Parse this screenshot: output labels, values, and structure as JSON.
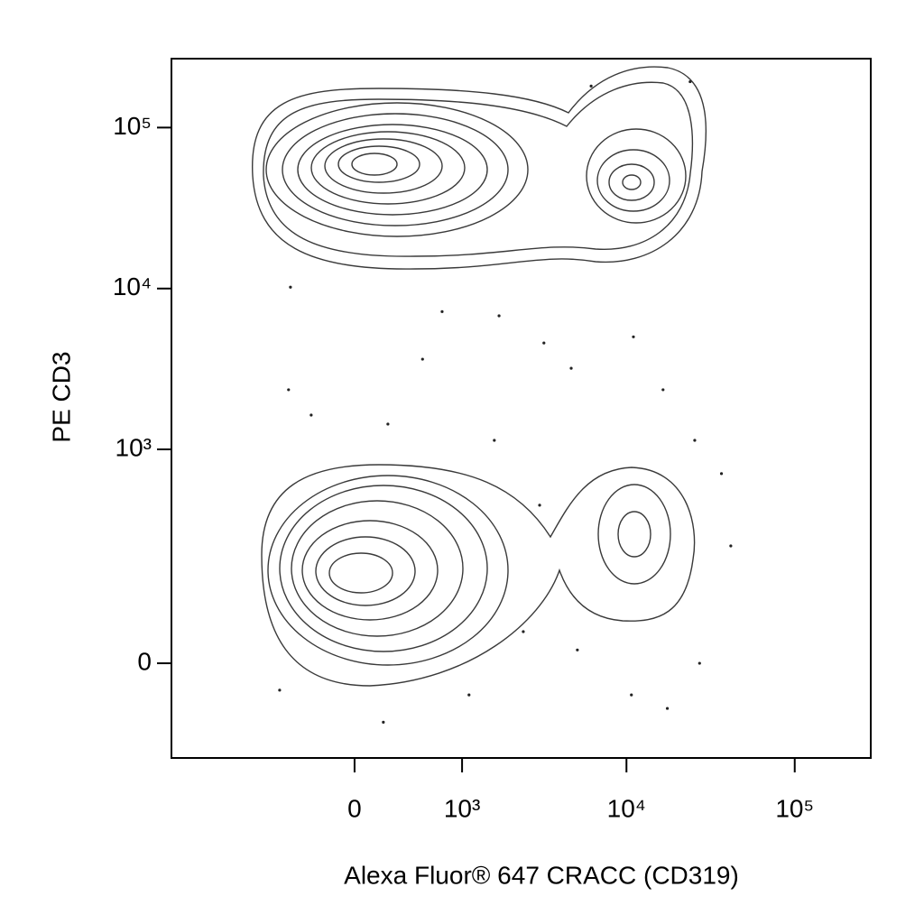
{
  "chart_data": {
    "type": "scatter",
    "x_label": "Alexa Fluor® 647 CRACC (CD319)",
    "y_label": "PE  CD3",
    "xscale": {
      "type": "asinh",
      "cofactor": 485
    },
    "yscale": {
      "type": "asinh",
      "cofactor": 94
    },
    "xlim": [
      -2950,
      283000
    ],
    "ylim": [
      -170,
      268000
    ],
    "xticks": [
      0,
      {
        "value": 1000,
        "label": "10³"
      },
      {
        "value": 10000,
        "label": "10⁴"
      },
      {
        "value": 100000,
        "label": "10⁵"
      }
    ],
    "yticks": [
      0,
      {
        "value": 1000,
        "label": "10³"
      },
      {
        "value": 10000,
        "label": "10⁴"
      },
      {
        "value": 100000,
        "label": "10⁵"
      }
    ],
    "color": "#222222",
    "x": [
      -482,
      730,
      1717,
      3216,
      519,
      11000,
      4685,
      -500,
      16500,
      -305,
      229,
      1605,
      25460,
      36700,
      41700,
      3030,
      196,
      1110,
      5100,
      10700,
      17500,
      27200,
      -589,
      2415,
      23900,
      6160
    ],
    "values": [
      10200,
      7190,
      6770,
      4590,
      3640,
      5010,
      3196,
      2350,
      2350,
      1635,
      1438,
      1138,
      1138,
      705,
      243,
      446,
      -89,
      -44,
      18,
      -44,
      -65,
      0,
      -37,
      44,
      192700,
      181000
    ]
  }
}
